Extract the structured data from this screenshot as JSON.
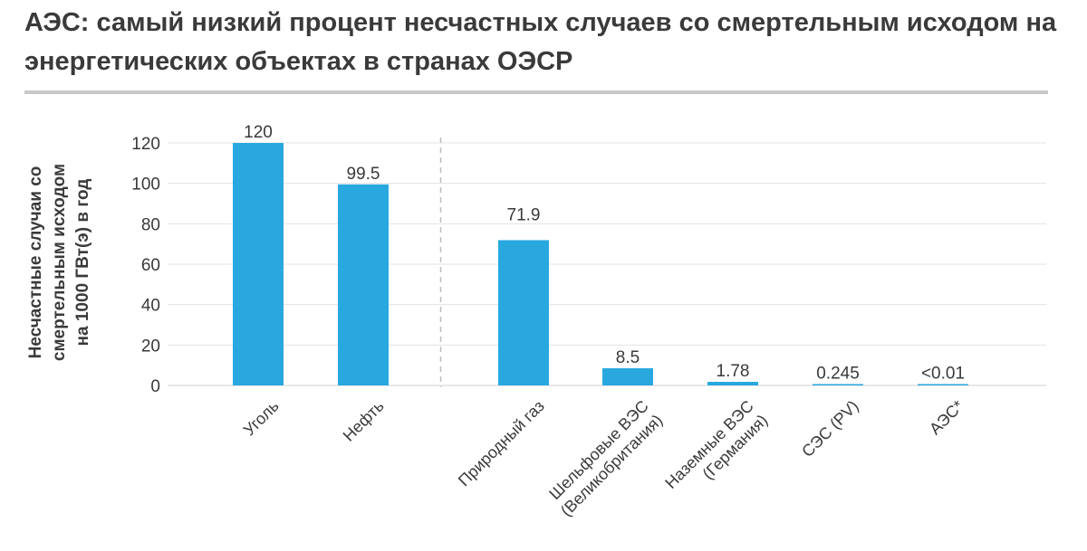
{
  "chart_data": {
    "type": "bar",
    "title": "АЭС: самый низкий процент несчастных случаев со смертельным исходом на энергетических объектах в странах ОЭСР",
    "ylabel": "Несчастные случаи со\nсмертельным исходом\nна 1000 ГВт(э) в год",
    "xlabel": "",
    "ylim": [
      0,
      120
    ],
    "yticks": [
      0,
      20,
      40,
      60,
      80,
      100,
      120
    ],
    "grid": true,
    "bar_color": "#29a8e0",
    "categories": [
      [
        "Уголь"
      ],
      [
        "Нефть"
      ],
      [
        "Природный газ"
      ],
      [
        "Шельфовые ВЭС",
        "(Великобритания)"
      ],
      [
        "Наземные ВЭС",
        "(Германия)"
      ],
      [
        "СЭС (PV)"
      ],
      [
        "АЭС*"
      ]
    ],
    "values": [
      120,
      99.5,
      71.9,
      8.5,
      1.78,
      0.245,
      0.01
    ],
    "data_labels": [
      "120",
      "99.5",
      "71.9",
      "8.5",
      "1.78",
      "0.245",
      "<0.01"
    ],
    "group_separator_after_index": 1
  }
}
